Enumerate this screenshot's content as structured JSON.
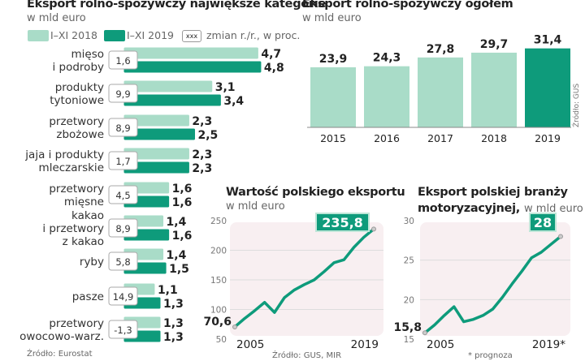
{
  "colors": {
    "light": "#a9dcc8",
    "dark": "#0e9b7b",
    "plot_bg": "#f8eff1"
  },
  "chart_data": [
    {
      "type": "bar",
      "title": "Eksport rolno-spożywczy największe kategorie",
      "subtitle": "w mld euro",
      "legend": [
        "I–XI 2018",
        "I–XI 2019"
      ],
      "legend_box_label": "xxx",
      "legend_box_text": "zmian r./r., w proc.",
      "categories": [
        [
          "mięso",
          "i podroby"
        ],
        [
          "produkty",
          "tytoniowe"
        ],
        [
          "przetwory",
          "zbożowe"
        ],
        [
          "jaja i produkty",
          "mleczarskie"
        ],
        [
          "przetwory",
          "mięsne"
        ],
        [
          "kakao",
          "i przetwory",
          "z kakao"
        ],
        [
          "ryby"
        ],
        [
          "pasze"
        ],
        [
          "przetwory",
          "owocowo-warz."
        ]
      ],
      "series": [
        {
          "name": "I–XI 2018",
          "values": [
            4.7,
            3.1,
            2.3,
            2.3,
            1.6,
            1.4,
            1.4,
            1.1,
            1.3
          ]
        },
        {
          "name": "I–XI 2019",
          "values": [
            4.8,
            3.4,
            2.5,
            2.3,
            1.6,
            1.6,
            1.5,
            1.3,
            1.3
          ]
        }
      ],
      "value_labels": [
        [
          "4,7",
          "4,8"
        ],
        [
          "3,1",
          "3,4"
        ],
        [
          "2,3",
          "2,5"
        ],
        [
          "2,3",
          "2,3"
        ],
        [
          "1,6",
          "1,6"
        ],
        [
          "1,4",
          "1,6"
        ],
        [
          "1,4",
          "1,5"
        ],
        [
          "1,1",
          "1,3"
        ],
        [
          "1,3",
          "1,3"
        ]
      ],
      "change_pct": [
        "1,6",
        "9,9",
        "8,9",
        "1,7",
        "4,5",
        "8,9",
        "5,8",
        "14,9",
        "-1,3"
      ],
      "source": "Źródło: Eurostat"
    },
    {
      "type": "bar",
      "title": "Eksport rolno-spożywczy ogółem",
      "subtitle": "w mld euro",
      "categories": [
        "2015",
        "2016",
        "2017",
        "2018",
        "2019"
      ],
      "values": [
        23.9,
        24.3,
        27.8,
        29.7,
        31.4
      ],
      "value_labels": [
        "23,9",
        "24,3",
        "27,8",
        "29,7",
        "31,4"
      ],
      "source": "Źródło: GUS"
    },
    {
      "type": "line",
      "title": "Wartość polskiego eksportu",
      "subtitle": "w mld euro",
      "x": [
        2005,
        2006,
        2007,
        2008,
        2009,
        2010,
        2011,
        2012,
        2013,
        2014,
        2015,
        2016,
        2017,
        2018,
        2019
      ],
      "y": [
        70.6,
        85,
        98,
        112,
        95,
        120,
        133,
        142,
        150,
        164,
        179,
        184,
        205,
        222,
        235.8
      ],
      "ylim": [
        50,
        250
      ],
      "yticks": [
        "250",
        "200",
        "150",
        "100",
        "50"
      ],
      "xtick_labels": [
        "2005",
        "2019"
      ],
      "start_label": "70,6",
      "end_label": "235,8",
      "source": "Źródło: GUS, MIR"
    },
    {
      "type": "line",
      "title": "Eksport polskiej branży",
      "title2": "motoryzacyjnej,",
      "subtitle": "w mld euro",
      "x": [
        2005,
        2006,
        2007,
        2008,
        2009,
        2010,
        2011,
        2012,
        2013,
        2014,
        2015,
        2016,
        2017,
        2018,
        2019
      ],
      "y": [
        15.8,
        16.8,
        18.0,
        19.1,
        17.2,
        17.5,
        18.0,
        18.8,
        20.3,
        22.0,
        23.6,
        25.3,
        26.0,
        27.0,
        28
      ],
      "ylim": [
        15,
        30
      ],
      "yticks": [
        "30",
        "25",
        "20",
        "15"
      ],
      "xtick_labels": [
        "2005",
        "2019*"
      ],
      "start_label": "15,8",
      "end_label": "28",
      "note": "* prognoza"
    }
  ]
}
